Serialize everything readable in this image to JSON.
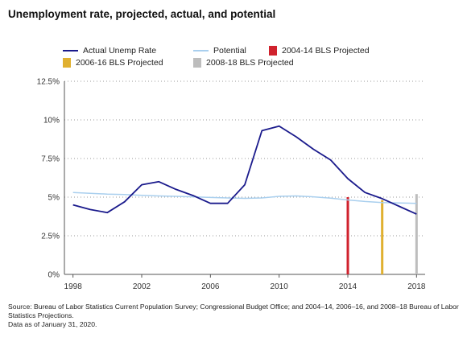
{
  "title": "Unemployment rate, projected, actual, and potential",
  "source": "Source: Bureau of Labor Statistics Current Population Survey; Congressional Budget Office; and 2004–14, 2006–16, and 2008–18 Bureau of Labor Statistics Projections.",
  "data_as_of": "Data as of January 31, 2020.",
  "chart_data": {
    "type": "line",
    "title": "Unemployment rate, projected, actual, and potential",
    "xlim": [
      1997.5,
      2018.5
    ],
    "ylim": [
      0,
      12.5
    ],
    "x_ticks": [
      1998,
      2002,
      2006,
      2010,
      2014,
      2018
    ],
    "x_tick_labels": [
      "1998",
      "2002",
      "2006",
      "2010",
      "2014",
      "2018"
    ],
    "y_ticks": [
      0,
      2.5,
      5,
      7.5,
      10,
      12.5
    ],
    "y_tick_labels": [
      "0%",
      "2.5%",
      "5%",
      "7.5%",
      "10%",
      "12.5%"
    ],
    "grid": "horizontal dotted",
    "legend_position": "top",
    "series": [
      {
        "name": "Actual Unemp Rate",
        "color": "#1a1a8c",
        "x": [
          1998,
          1999,
          2000,
          2001,
          2002,
          2003,
          2004,
          2005,
          2006,
          2007,
          2008,
          2009,
          2010,
          2011,
          2012,
          2013,
          2014,
          2015,
          2016,
          2017,
          2018
        ],
        "values": [
          4.5,
          4.2,
          4.0,
          4.7,
          5.8,
          6.0,
          5.5,
          5.1,
          4.6,
          4.6,
          5.8,
          9.3,
          9.6,
          8.9,
          8.1,
          7.4,
          6.2,
          5.3,
          4.9,
          4.4,
          3.9
        ]
      },
      {
        "name": "Potential",
        "color": "#a9cfee",
        "x": [
          1998,
          1999,
          2000,
          2001,
          2002,
          2003,
          2004,
          2005,
          2006,
          2007,
          2008,
          2009,
          2010,
          2011,
          2012,
          2013,
          2014,
          2015,
          2016,
          2017,
          2018
        ],
        "values": [
          5.3,
          5.25,
          5.2,
          5.17,
          5.12,
          5.08,
          5.05,
          5.02,
          4.98,
          4.95,
          4.92,
          4.95,
          5.05,
          5.08,
          5.02,
          4.93,
          4.82,
          4.72,
          4.65,
          4.62,
          4.6
        ]
      },
      {
        "name": "2004-14 BLS Projected",
        "color": "#d0222d",
        "type": "bar",
        "x": [
          2014
        ],
        "values": [
          5.0
        ]
      },
      {
        "name": "2006-16 BLS Projected",
        "color": "#e0b030",
        "type": "bar",
        "x": [
          2016
        ],
        "values": [
          4.8
        ]
      },
      {
        "name": "2008-18 BLS Projected",
        "color": "#bdbdbd",
        "type": "bar",
        "x": [
          2018
        ],
        "values": [
          5.2
        ]
      }
    ]
  }
}
